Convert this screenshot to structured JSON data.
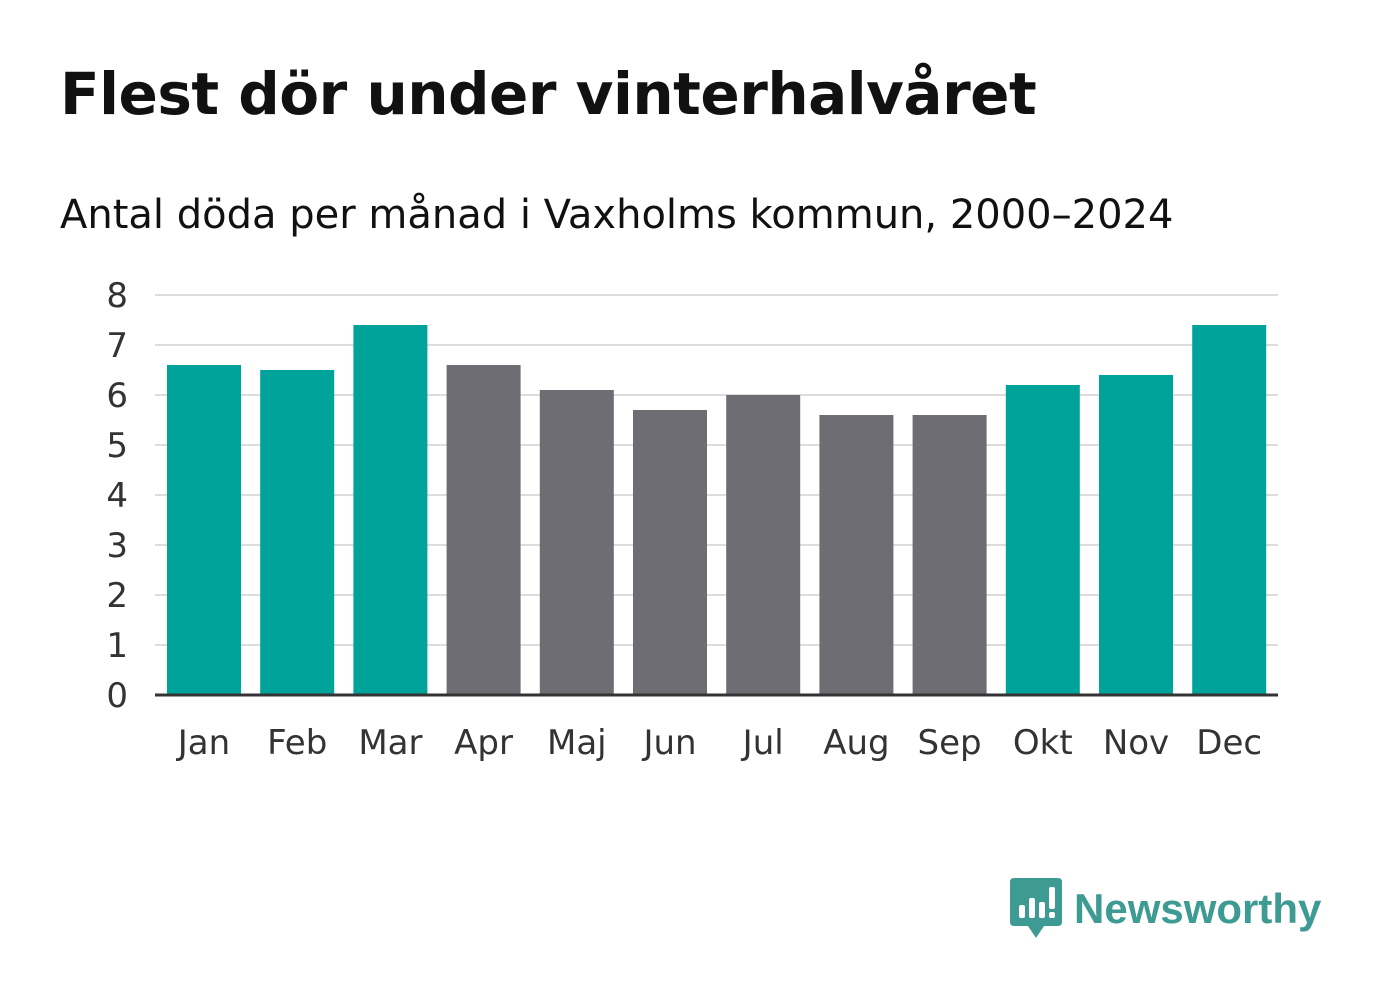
{
  "title": "Flest dör under vinterhalvåret",
  "subtitle": "Antal döda per månad i Vaxholms kommun, 2000–2024",
  "brand": {
    "name": "Newsworthy",
    "logo_icon": "newsworthy-logo-icon"
  },
  "colors": {
    "winter": "#00a39a",
    "summer": "#6e6d73",
    "grid": "#dddddd",
    "axis": "#333333",
    "tick_text": "#333333",
    "brand": "#3e9b93"
  },
  "chart_data": {
    "type": "bar",
    "title": "Flest dör under vinterhalvåret",
    "subtitle": "Antal döda per månad i Vaxholms kommun, 2000–2024",
    "xlabel": "",
    "ylabel": "",
    "ylim": [
      0,
      8
    ],
    "yticks": [
      0,
      1,
      2,
      3,
      4,
      5,
      6,
      7,
      8
    ],
    "grid": true,
    "categories": [
      "Jan",
      "Feb",
      "Mar",
      "Apr",
      "Maj",
      "Jun",
      "Jul",
      "Aug",
      "Sep",
      "Okt",
      "Nov",
      "Dec"
    ],
    "values": [
      6.6,
      6.5,
      7.4,
      6.6,
      6.1,
      5.7,
      6.0,
      5.6,
      5.6,
      6.2,
      6.4,
      7.4
    ],
    "highlight": [
      "winter",
      "winter",
      "winter",
      "summer",
      "summer",
      "summer",
      "summer",
      "summer",
      "summer",
      "winter",
      "winter",
      "winter"
    ]
  }
}
